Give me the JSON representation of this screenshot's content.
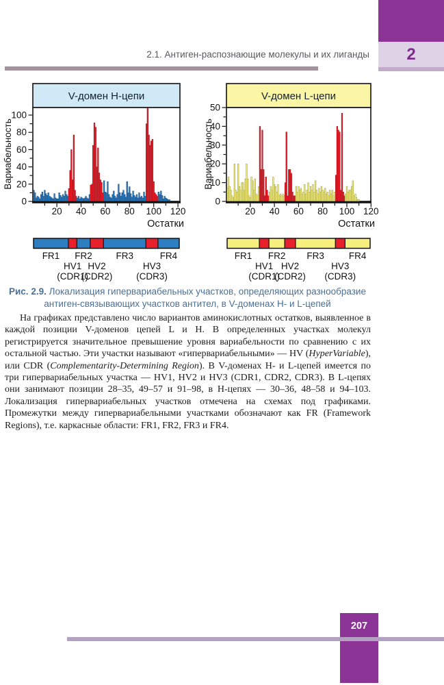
{
  "page": {
    "running_head": "2.1. Антиген-распознающие молекулы и их лиганды",
    "chapter_number": "2",
    "page_number": "207"
  },
  "colors": {
    "chapter_purple": "#8c3496",
    "lavender_tab": "#ded2e6",
    "lavender_strip": "#c2aacb",
    "head_rule": "#a5929f",
    "running_head_text": "#5b575e",
    "caption_blue": "#4a7097",
    "footer_line": "#b3a0c2",
    "h_bar_blue": "#2e7fc2",
    "hv_red": "#e8202b",
    "l_bar_yellow": "#f7f07c",
    "h_band_blue": "#cfe9f6",
    "l_band_yellow": "#fbf6a6"
  },
  "figure": {
    "caption_label": "Рис. 2.9.",
    "caption_text": "Локализация гипервариабельных участков, определяющих разнообразие антиген-связывающих участков антител, в V-доменах H- и L-цепей"
  },
  "chart_data": [
    {
      "type": "bar",
      "title": "V-домен H-цепи",
      "xlabel": "Остатки",
      "ylabel": "Вариабельность",
      "xlim": [
        0,
        122
      ],
      "ylim": [
        0,
        110
      ],
      "xticks": [
        20,
        40,
        60,
        80,
        100,
        120
      ],
      "yticks": [
        0,
        20,
        40,
        60,
        80,
        100
      ],
      "grid": false,
      "hv_regions": [
        [
          30,
          36
        ],
        [
          48,
          58
        ],
        [
          94,
          103
        ]
      ],
      "band_color": "#cfe9f6",
      "bar_color": "#2e7fc2",
      "bar_stroke": "#0c3c70",
      "hv_color": "#e8202b",
      "hv_stroke": "#8d1118",
      "values": [
        13,
        10,
        4,
        6,
        5,
        3,
        8,
        11,
        6,
        13,
        9,
        7,
        10,
        6,
        5,
        4,
        3,
        9,
        4,
        3,
        3,
        10,
        7,
        5,
        8,
        6,
        12,
        8,
        6,
        15,
        36,
        60,
        25,
        77,
        13,
        6,
        4,
        6,
        3,
        5,
        4,
        3,
        4,
        6,
        4,
        3,
        8,
        19,
        20,
        65,
        91,
        86,
        40,
        62,
        33,
        25,
        22,
        10,
        24,
        11,
        10,
        23,
        8,
        5,
        4,
        8,
        12,
        6,
        4,
        8,
        20,
        10,
        6,
        10,
        13,
        8,
        5,
        23,
        10,
        17,
        9,
        5,
        12,
        7,
        5,
        8,
        4,
        10,
        5,
        6,
        4,
        11,
        6,
        90,
        110,
        77,
        65,
        70,
        72,
        23,
        10,
        8,
        6,
        11,
        8,
        12,
        7,
        3,
        6,
        4,
        3,
        2,
        2
      ]
    },
    {
      "type": "bar",
      "title": "V-домен L-цепи",
      "xlabel": "Остатки",
      "ylabel": "Вариабельность",
      "xlim": [
        0,
        122
      ],
      "ylim": [
        0,
        50
      ],
      "xticks": [
        20,
        40,
        60,
        80,
        100,
        120
      ],
      "yticks": [
        0,
        10,
        20,
        30,
        40,
        50
      ],
      "grid": false,
      "hv_regions": [
        [
          28,
          35
        ],
        [
          49,
          57
        ],
        [
          91,
          98
        ]
      ],
      "band_color": "#fbf6a6",
      "bar_color": "#f7f07c",
      "bar_stroke": "#8a8b2f",
      "hv_color": "#e8202b",
      "hv_stroke": "#8d1118",
      "values": [
        7,
        13,
        8,
        6,
        3,
        2,
        20,
        6,
        5,
        20,
        8,
        6,
        10,
        10,
        6,
        12,
        20,
        12,
        3,
        2,
        13,
        11,
        6,
        12,
        4,
        3,
        8,
        40,
        17,
        38,
        17,
        3,
        13,
        6,
        3,
        5,
        8,
        6,
        13,
        9,
        8,
        5,
        9,
        3,
        4,
        3,
        4,
        3,
        10,
        37,
        3,
        17,
        17,
        15,
        5,
        3,
        3,
        8,
        5,
        8,
        6,
        7,
        4,
        5,
        9,
        4,
        6,
        10,
        5,
        8,
        6,
        9,
        5,
        11,
        6,
        4,
        7,
        5,
        8,
        6,
        5,
        7,
        4,
        5,
        3,
        6,
        4,
        6,
        3,
        5,
        14,
        40,
        38,
        37,
        6,
        47,
        5,
        3,
        4,
        8,
        5,
        6,
        6,
        8,
        11,
        3,
        4,
        2,
        1,
        1
      ]
    }
  ],
  "schematic": {
    "fr_labels": [
      "FR1",
      "FR2",
      "FR3",
      "FR4"
    ],
    "hv_labels": [
      "HV1",
      "HV2",
      "HV3"
    ],
    "cdr_labels": [
      "(CDR1)",
      "(CDR2)",
      "(CDR3)"
    ]
  },
  "body_paragraph": {
    "segments": [
      {
        "text": "На графиках представлено число вариантов аминокислотных остатков, выявленное в каждой позиции V-доменов цепей L и H. В определенных участках молекул регистрируется значительное превышение уровня вариабельности по сравнению с их остальной частью. Эти участки называют «гипервариабельными» — HV (",
        "italic": false
      },
      {
        "text": "HyperVariable",
        "italic": true
      },
      {
        "text": "), или CDR (",
        "italic": false
      },
      {
        "text": "Complementarity-Determining Region",
        "italic": true
      },
      {
        "text": "). В V-доменах H- и L-цепей имеется по три гипервариабельных участка — HV1, HV2 и HV3 (CDR1, CDR2, CDR3). В L-цепях они занимают позиции 28–35, 49–57 и 91–98, в H-цепях — 30–36, 48–58 и 94–103. Локализация гипервариабельных участков отмечена на схемах под графиками. Промежутки между гипервариабельными участками обозначают как FR (Framework Regions), т.е. каркасные области: FR1, FR2, FR3 и FR4.",
        "italic": false
      }
    ]
  }
}
